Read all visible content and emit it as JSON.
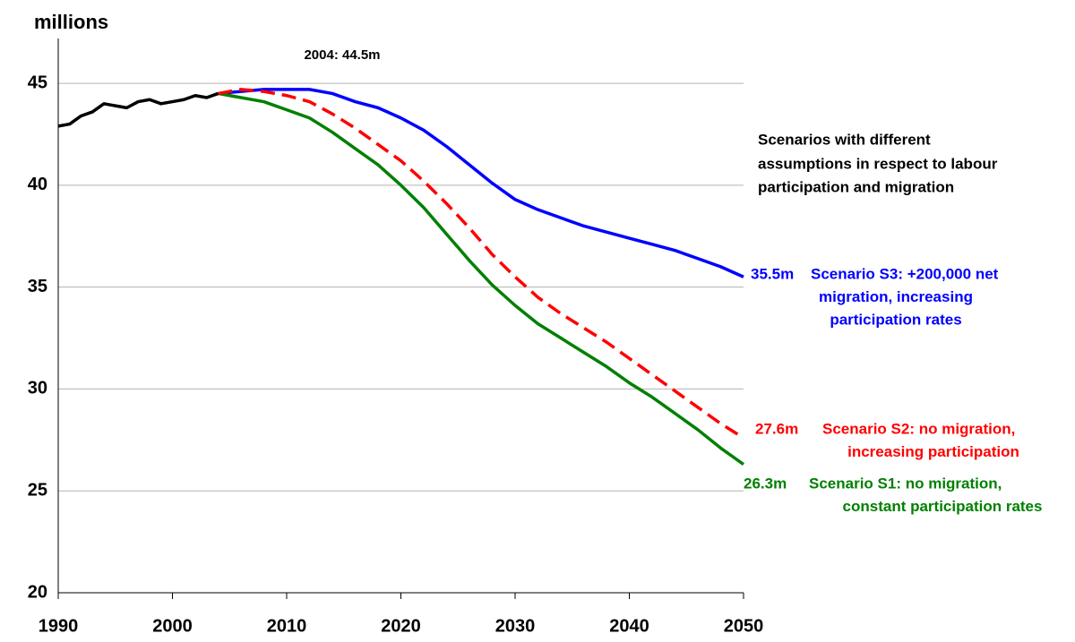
{
  "chart_data": {
    "type": "line",
    "y_axis_label": "millions",
    "annotations": [
      "2004: 44.5m"
    ],
    "note_lines": [
      "Scenarios with different",
      "assumptions in respect to labour",
      "participation and migration"
    ],
    "xlim": [
      1990,
      2050
    ],
    "xticks": [
      1990,
      2000,
      2010,
      2020,
      2030,
      2040,
      2050
    ],
    "ylim": [
      20,
      47.2
    ],
    "yticks": [
      20,
      25,
      30,
      35,
      40,
      45
    ],
    "grid": true,
    "series": [
      {
        "color": "#000000",
        "dashed": false,
        "x": [
          1990,
          1991,
          1992,
          1993,
          1994,
          1995,
          1996,
          1997,
          1998,
          1999,
          2000,
          2001,
          2002,
          2003,
          2004
        ],
        "values": [
          42.9,
          43.0,
          43.4,
          43.6,
          44.0,
          43.9,
          43.8,
          44.1,
          44.2,
          44.0,
          44.1,
          44.2,
          44.4,
          44.3,
          44.5
        ]
      },
      {
        "name": [
          "Scenario S3: +200,000 net",
          "migration, increasing",
          "participation rates"
        ],
        "color": "#0000ff",
        "dashed": false,
        "x": [
          2004,
          2006,
          2008,
          2010,
          2012,
          2014,
          2016,
          2018,
          2020,
          2022,
          2024,
          2026,
          2028,
          2030,
          2032,
          2034,
          2036,
          2038,
          2040,
          2042,
          2044,
          2046,
          2048,
          2050
        ],
        "values": [
          44.5,
          44.6,
          44.7,
          44.7,
          44.7,
          44.5,
          44.1,
          43.8,
          43.3,
          42.7,
          41.9,
          41.0,
          40.1,
          39.3,
          38.8,
          38.4,
          38.0,
          37.7,
          37.4,
          37.1,
          36.8,
          36.4,
          36.0,
          35.5
        ],
        "value_labels": [
          null,
          null,
          null,
          null,
          null,
          null,
          null,
          null,
          null,
          null,
          null,
          null,
          null,
          null,
          null,
          null,
          null,
          null,
          null,
          null,
          null,
          null,
          null,
          "35.5m"
        ]
      },
      {
        "name": [
          "Scenario S2: no migration,",
          "increasing participation"
        ],
        "color": "#ff0000",
        "dashed": true,
        "x": [
          2004,
          2006,
          2008,
          2010,
          2012,
          2014,
          2016,
          2018,
          2020,
          2022,
          2024,
          2026,
          2028,
          2030,
          2032,
          2034,
          2036,
          2038,
          2040,
          2042,
          2044,
          2046,
          2048,
          2050
        ],
        "values": [
          44.5,
          44.7,
          44.6,
          44.4,
          44.1,
          43.5,
          42.8,
          42.0,
          41.2,
          40.2,
          39.1,
          37.9,
          36.6,
          35.5,
          34.5,
          33.7,
          33.0,
          32.3,
          31.5,
          30.7,
          29.9,
          29.1,
          28.3,
          27.6
        ],
        "value_labels": [
          null,
          null,
          null,
          null,
          null,
          null,
          null,
          null,
          null,
          null,
          null,
          null,
          null,
          null,
          null,
          null,
          null,
          null,
          null,
          null,
          null,
          null,
          null,
          "27.6m"
        ]
      },
      {
        "name": [
          "Scenario S1:  no  migration,",
          "constant participation rates"
        ],
        "color": "#008000",
        "dashed": false,
        "x": [
          2004,
          2006,
          2008,
          2010,
          2012,
          2014,
          2016,
          2018,
          2020,
          2022,
          2024,
          2026,
          2028,
          2030,
          2032,
          2034,
          2036,
          2038,
          2040,
          2042,
          2044,
          2046,
          2048,
          2050
        ],
        "values": [
          44.5,
          44.3,
          44.1,
          43.7,
          43.3,
          42.6,
          41.8,
          41.0,
          40.0,
          38.9,
          37.6,
          36.3,
          35.1,
          34.1,
          33.2,
          32.5,
          31.8,
          31.1,
          30.3,
          29.6,
          28.8,
          28.0,
          27.1,
          26.3
        ],
        "value_labels": [
          null,
          null,
          null,
          null,
          null,
          null,
          null,
          null,
          null,
          null,
          null,
          null,
          null,
          null,
          null,
          null,
          null,
          null,
          null,
          null,
          null,
          null,
          null,
          "26.3m"
        ]
      }
    ]
  }
}
